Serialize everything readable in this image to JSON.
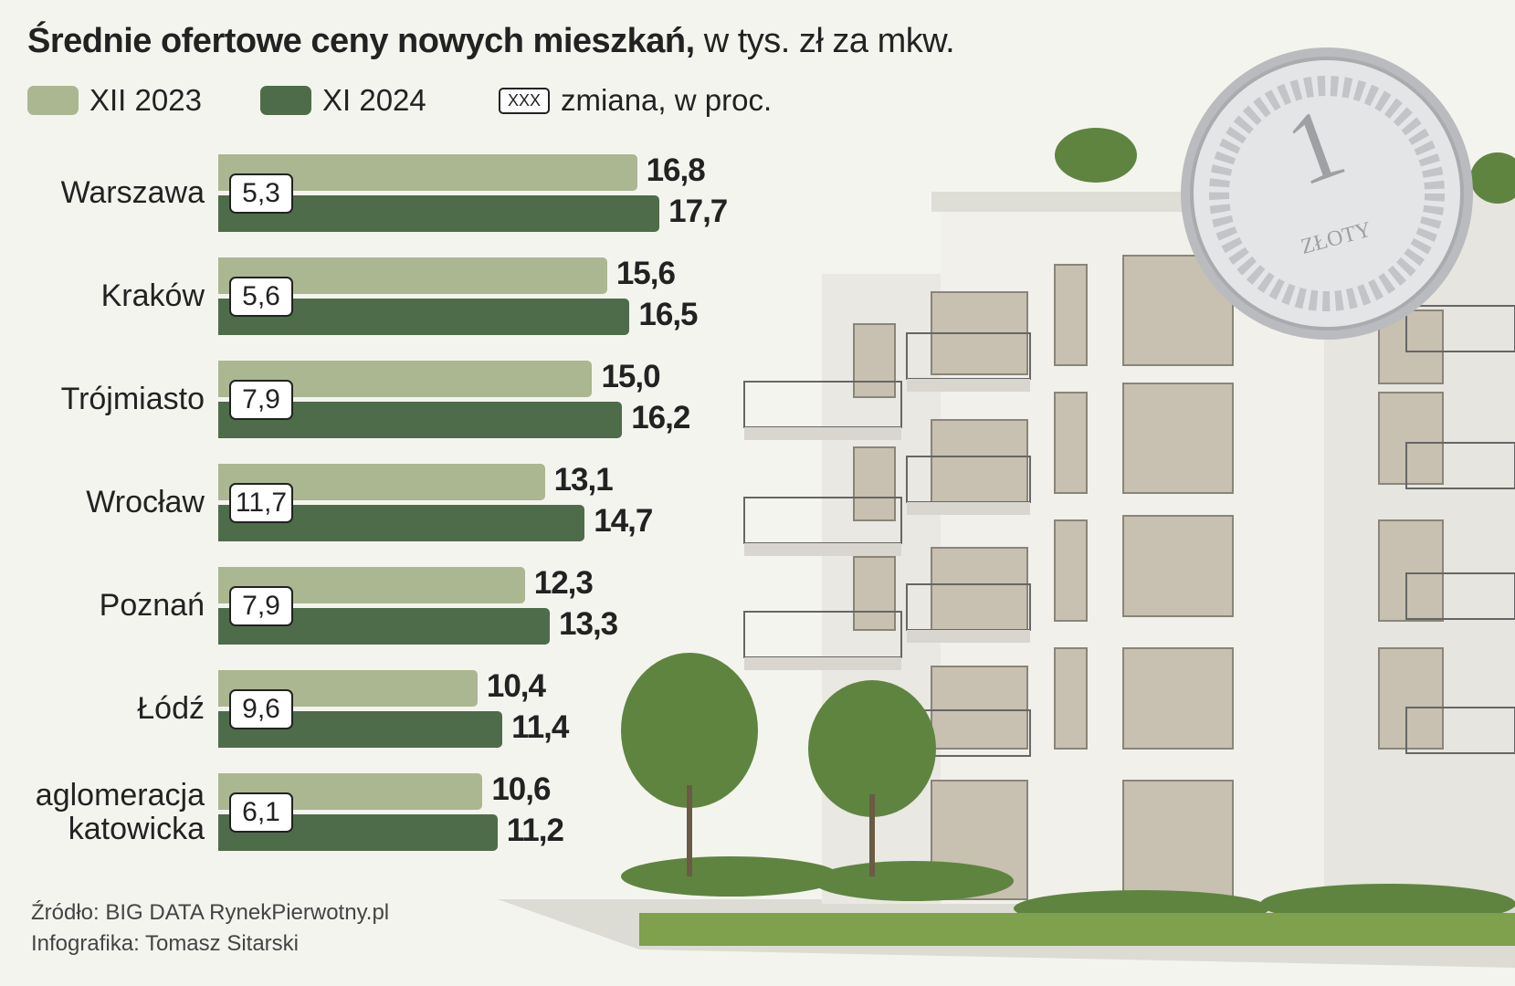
{
  "chart_data": {
    "type": "bar",
    "orientation": "horizontal",
    "title": "Średnie ofertowe ceny nowych mieszkań,",
    "subtitle": "w tys. zł za mkw.",
    "categories": [
      "Warszawa",
      "Kraków",
      "Trójmiasto",
      "Wrocław",
      "Poznań",
      "Łódź",
      "aglomeracja katowicka"
    ],
    "series": [
      {
        "name": "XII 2023",
        "color": "#aab790",
        "values": [
          16.8,
          15.6,
          15.0,
          13.1,
          12.3,
          10.4,
          10.6
        ],
        "value_labels": [
          "16,8",
          "15,6",
          "15,0",
          "13,1",
          "12,3",
          "10,4",
          "10,6"
        ]
      },
      {
        "name": "XI 2024",
        "color": "#4e6c49",
        "values": [
          17.7,
          16.5,
          16.2,
          14.7,
          13.3,
          11.4,
          11.2
        ],
        "value_labels": [
          "17,7",
          "16,5",
          "16,2",
          "14,7",
          "13,3",
          "11,4",
          "11,2"
        ]
      }
    ],
    "change": {
      "name": "zmiana, w proc.",
      "symbol": "XXX",
      "values": [
        5.3,
        5.6,
        7.9,
        11.7,
        7.9,
        9.6,
        6.1
      ],
      "value_labels": [
        "5,3",
        "5,6",
        "7,9",
        "11,7",
        "7,9",
        "9,6",
        "6,1"
      ]
    },
    "source": "Źródło: BIG DATA RynekPierwotny.pl",
    "credit": "Infografika: Tomasz Sitarski"
  }
}
